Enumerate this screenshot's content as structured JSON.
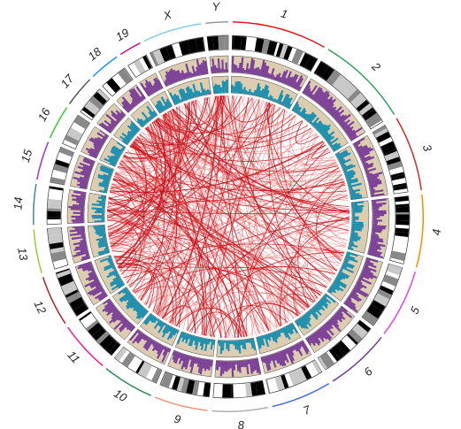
{
  "figure": {
    "type": "circos",
    "title": ""
  },
  "chromosomes": [
    {
      "name": "1",
      "size": 249,
      "color": "#e31a1c"
    },
    {
      "name": "2",
      "size": 243,
      "color": "#2ca25f"
    },
    {
      "name": "3",
      "size": 198,
      "color": "#d62728"
    },
    {
      "name": "4",
      "size": 191,
      "color": "#ff8c00"
    },
    {
      "name": "5",
      "size": 181,
      "color": "#e040fb"
    },
    {
      "name": "6",
      "size": 171,
      "color": "#6a3d9a"
    },
    {
      "name": "7",
      "size": 159,
      "color": "#4169e1"
    },
    {
      "name": "8",
      "size": 146,
      "color": "#b0b0b0"
    },
    {
      "name": "9",
      "size": 141,
      "color": "#e9967a"
    },
    {
      "name": "10",
      "size": 136,
      "color": "#2e8b57"
    },
    {
      "name": "11",
      "size": 135,
      "color": "#ff1493"
    },
    {
      "name": "12",
      "size": 134,
      "color": "#b22222"
    },
    {
      "name": "13",
      "size": 115,
      "color": "#9acd32"
    },
    {
      "name": "14",
      "size": 107,
      "color": "#4682b4"
    },
    {
      "name": "15",
      "size": 102,
      "color": "#9932cc"
    },
    {
      "name": "16",
      "size": 90,
      "color": "#32cd32"
    },
    {
      "name": "17",
      "size": 83,
      "color": "#555555"
    },
    {
      "name": "18",
      "size": 80,
      "color": "#1e90ff"
    },
    {
      "name": "19",
      "size": 59,
      "color": "#c71585"
    },
    {
      "name": "X",
      "size": 155,
      "color": "#87ceeb"
    },
    {
      "name": "Y",
      "size": 59,
      "color": "#999999"
    }
  ],
  "tracks": {
    "ideogram": {
      "name": "cytoband ideogram",
      "colors": [
        "#000000",
        "#888888",
        "#c8c8c8",
        "#ffffff"
      ]
    },
    "histogram_outer": {
      "name": "purple histogram",
      "color": "#7b3f98",
      "background": "#dccdb0"
    },
    "histogram_inner": {
      "name": "teal histogram",
      "color": "#1a8fb0",
      "background": "#dccdb0"
    },
    "links": {
      "name": "red links",
      "color": "#e41a1c",
      "count": 420
    }
  }
}
